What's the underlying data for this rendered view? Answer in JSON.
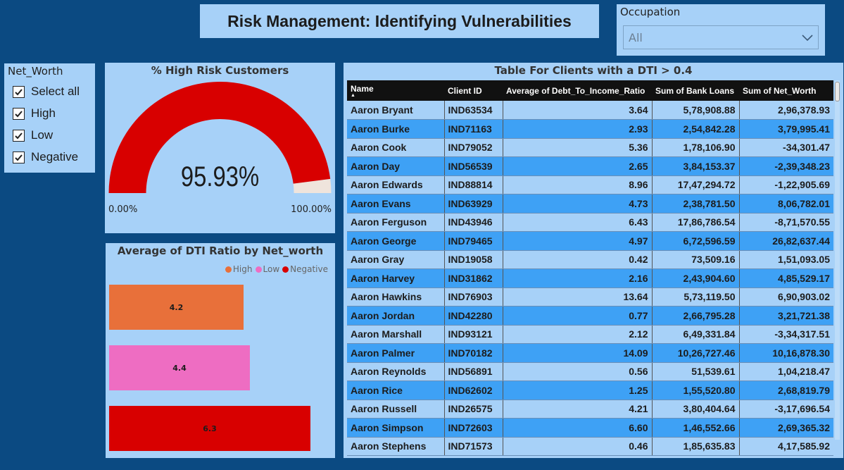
{
  "header": {
    "title": "Risk Management: Identifying Vulnerabilities"
  },
  "occupation": {
    "label": "Occupation",
    "value": "All",
    "icon": "chevron-down-icon"
  },
  "net_worth_filter": {
    "label": "Net_Worth",
    "items": [
      {
        "label": "Select all",
        "checked": true
      },
      {
        "label": "High",
        "checked": true
      },
      {
        "label": "Low",
        "checked": true
      },
      {
        "label": "Negative",
        "checked": true
      }
    ]
  },
  "gauge": {
    "title": "% High Risk Customers",
    "value_label": "95.93%",
    "value": 95.93,
    "min_label": "0.00%",
    "max_label": "100.00%",
    "fill_color": "#d80000",
    "track_color": "#efe4dc"
  },
  "dti_chart": {
    "title": "Average of DTI Ratio by Net_worth",
    "legend": [
      {
        "label": "High",
        "color": "#e8703a"
      },
      {
        "label": "Low",
        "color": "#ee6dc2"
      },
      {
        "label": "Negative",
        "color": "#d80000"
      }
    ]
  },
  "chart_data": {
    "type": "bar",
    "title": "Average of DTI Ratio by Net_worth",
    "categories": [
      "High",
      "Low",
      "Negative"
    ],
    "values": [
      4.2,
      4.4,
      6.3
    ],
    "labels": [
      "4.2",
      "4.4",
      "6.3"
    ],
    "colors": [
      "#e8703a",
      "#ee6dc2",
      "#d80000"
    ],
    "orientation": "horizontal",
    "xlim": [
      0,
      6.6
    ],
    "legend_position": "top-right"
  },
  "table": {
    "title": "Table For Clients with a DTI > 0.4",
    "columns": [
      "Name",
      "Client ID",
      "Average of Debt_To_Income_Ratio",
      "Sum of Bank Loans",
      "Sum of Net_Worth"
    ],
    "rows": [
      [
        "Aaron Bryant",
        "IND63534",
        "3.64",
        "5,78,908.88",
        "2,96,378.93"
      ],
      [
        "Aaron Burke",
        "IND71163",
        "2.93",
        "2,54,842.28",
        "3,79,995.41"
      ],
      [
        "Aaron Cook",
        "IND79052",
        "5.36",
        "1,78,106.90",
        "-34,301.47"
      ],
      [
        "Aaron Day",
        "IND56539",
        "2.65",
        "3,84,153.37",
        "-2,39,348.23"
      ],
      [
        "Aaron Edwards",
        "IND88814",
        "8.96",
        "17,47,294.72",
        "-1,22,905.69"
      ],
      [
        "Aaron Evans",
        "IND63929",
        "4.73",
        "2,38,781.50",
        "8,06,782.01"
      ],
      [
        "Aaron Ferguson",
        "IND43946",
        "6.43",
        "17,86,786.54",
        "-8,71,570.55"
      ],
      [
        "Aaron George",
        "IND79465",
        "4.97",
        "6,72,596.59",
        "26,82,637.44"
      ],
      [
        "Aaron Gray",
        "IND19058",
        "0.42",
        "73,509.16",
        "1,51,093.05"
      ],
      [
        "Aaron Harvey",
        "IND31862",
        "2.16",
        "2,43,904.60",
        "4,85,529.17"
      ],
      [
        "Aaron Hawkins",
        "IND76903",
        "13.64",
        "5,73,119.50",
        "6,90,903.02"
      ],
      [
        "Aaron Jordan",
        "IND42280",
        "0.77",
        "2,66,795.28",
        "3,21,721.38"
      ],
      [
        "Aaron Marshall",
        "IND93121",
        "2.12",
        "6,49,331.84",
        "-3,34,317.51"
      ],
      [
        "Aaron Palmer",
        "IND70182",
        "14.09",
        "10,26,727.46",
        "10,16,878.30"
      ],
      [
        "Aaron Reynolds",
        "IND56891",
        "0.56",
        "51,539.61",
        "1,04,218.47"
      ],
      [
        "Aaron Rice",
        "IND62602",
        "1.25",
        "1,55,520.80",
        "2,68,819.79"
      ],
      [
        "Aaron Russell",
        "IND26575",
        "4.21",
        "3,80,404.64",
        "-3,17,696.54"
      ],
      [
        "Aaron Simpson",
        "IND72603",
        "6.60",
        "1,46,552.66",
        "2,69,365.32"
      ],
      [
        "Aaron Stephens",
        "IND71573",
        "0.46",
        "1,85,635.83",
        "4,17,585.92"
      ]
    ]
  }
}
